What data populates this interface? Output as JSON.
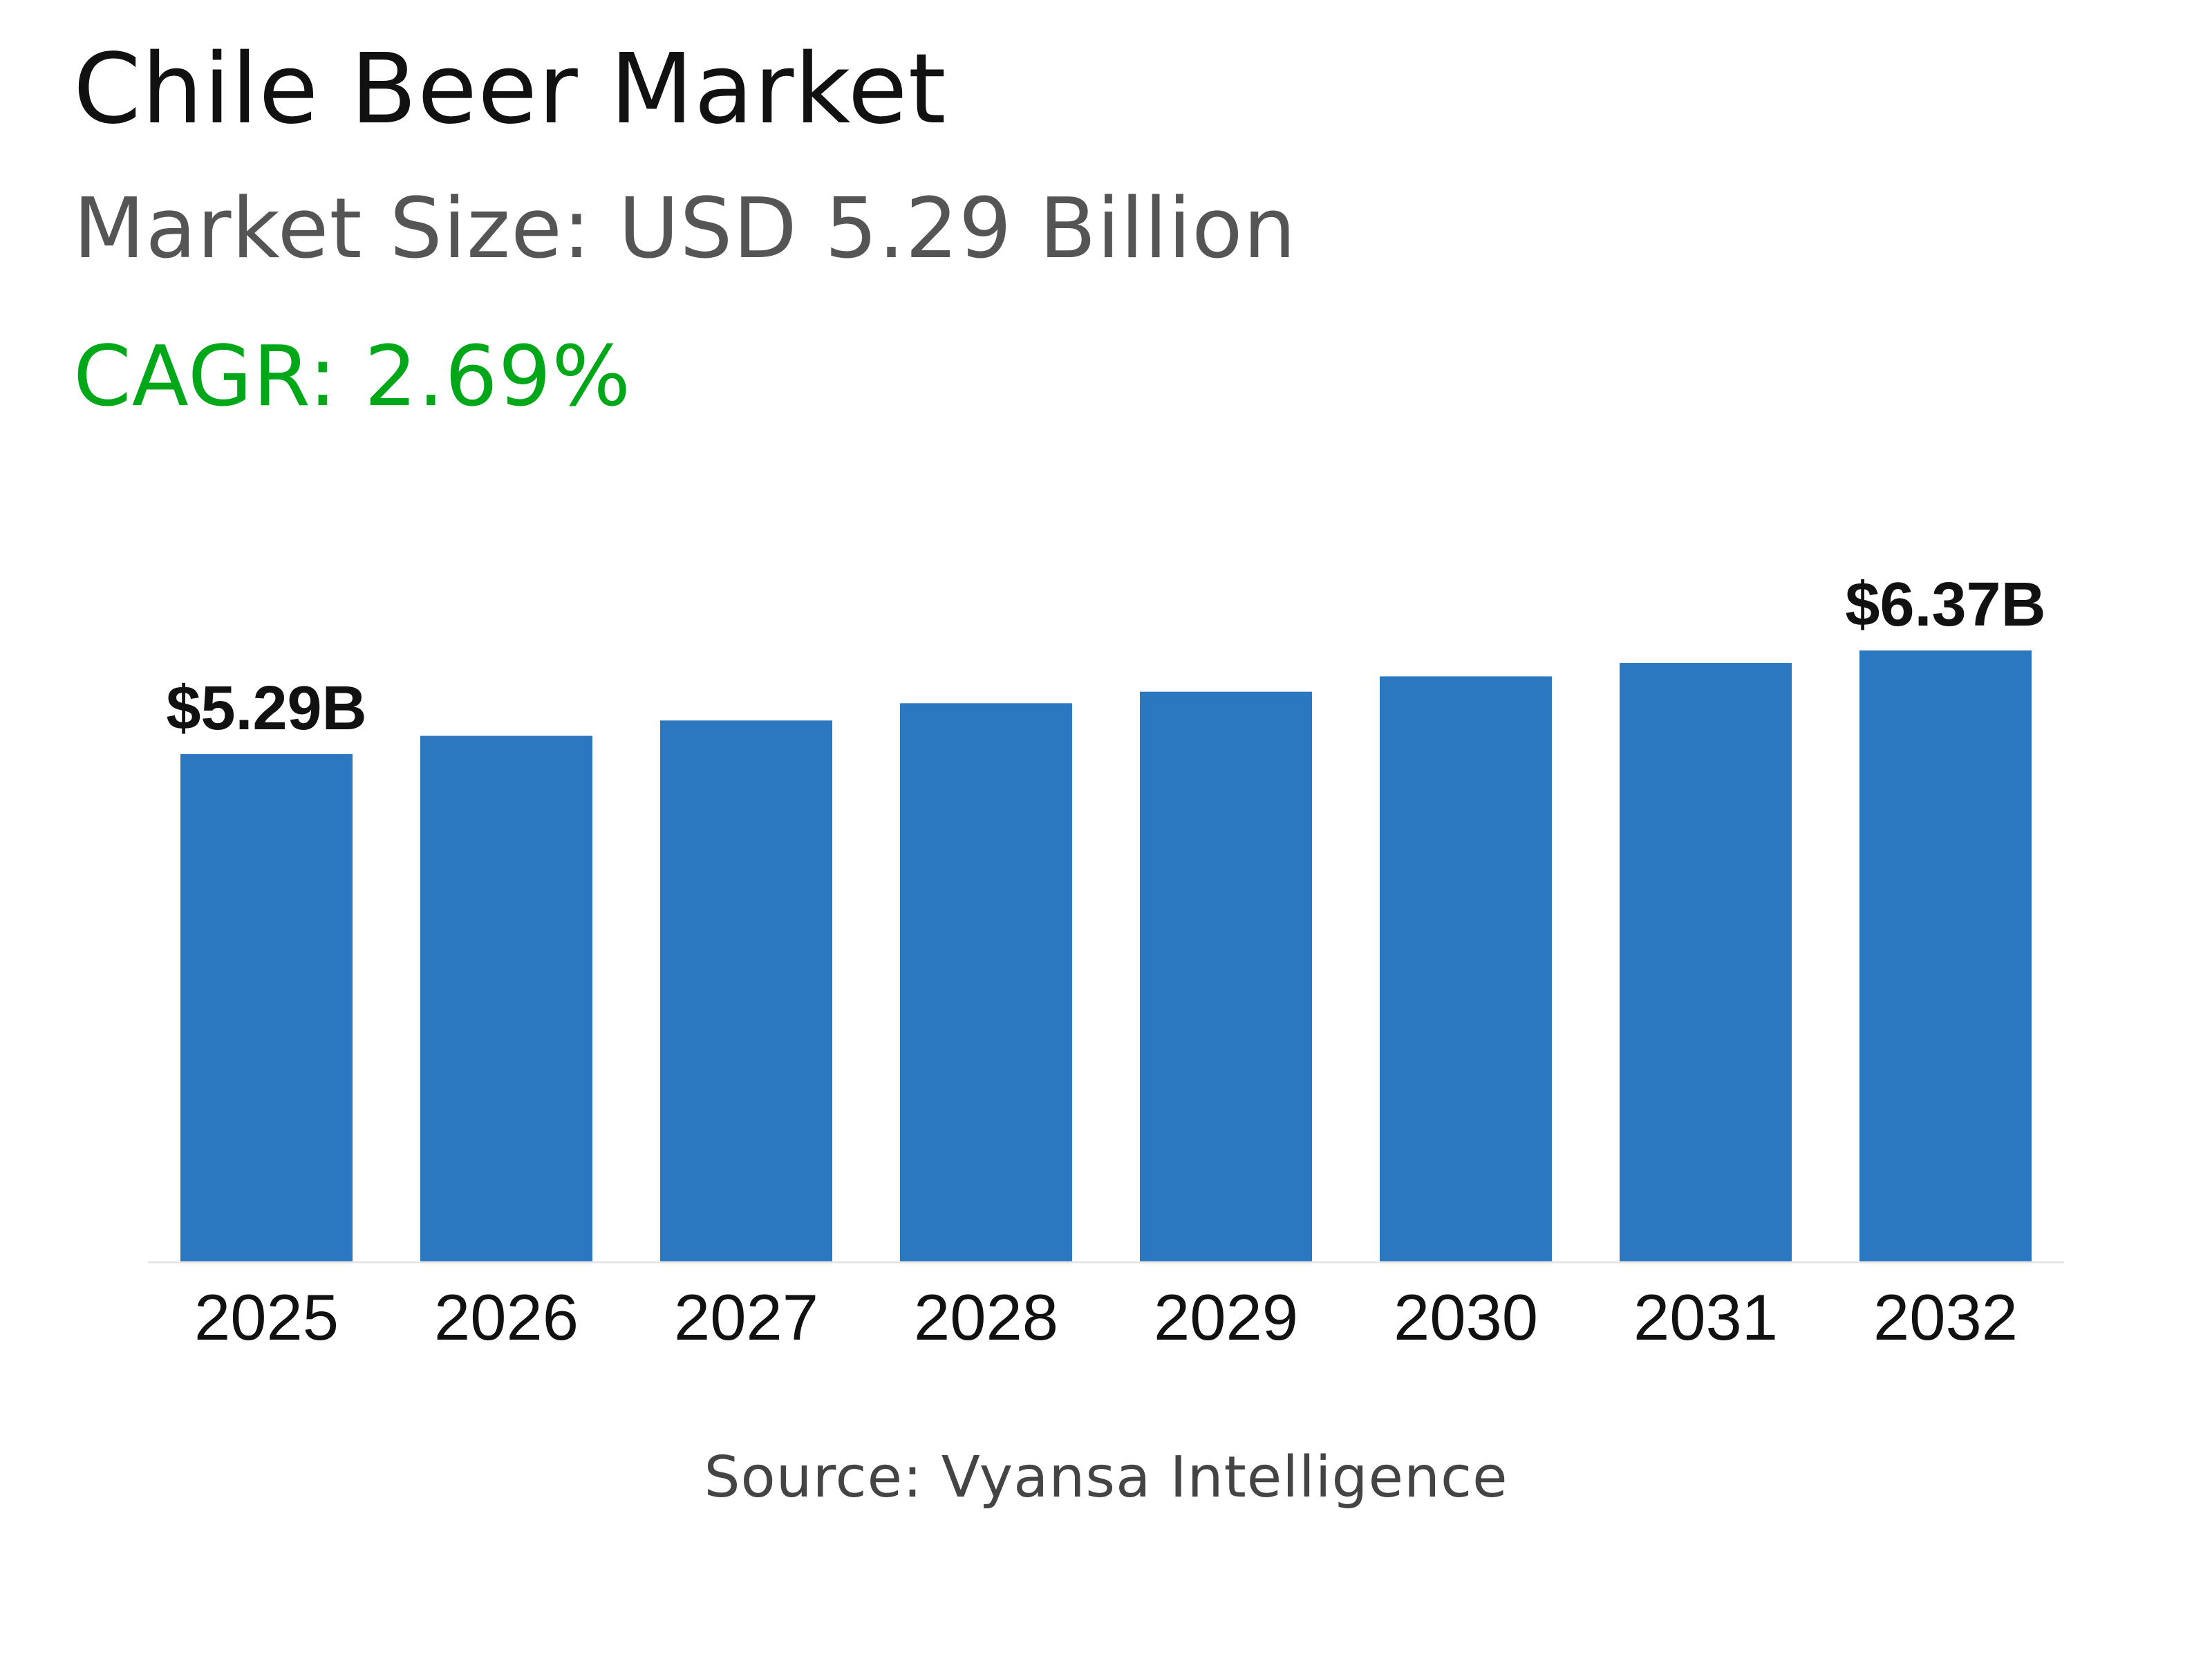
{
  "header": {
    "title": "Chile Beer Market",
    "subtitle": "Market Size: USD 5.29 Billion",
    "cagr": "CAGR: 2.69%"
  },
  "footer": {
    "source": "Source: Vyansa Intelligence"
  },
  "colors": {
    "bar": "#2b78c0",
    "cagr": "#00a819"
  },
  "chart_data": {
    "type": "bar",
    "title": "",
    "xlabel": "",
    "ylabel": "",
    "categories": [
      "2025",
      "2026",
      "2027",
      "2028",
      "2029",
      "2030",
      "2031",
      "2032"
    ],
    "values": [
      5.29,
      5.48,
      5.64,
      5.82,
      5.94,
      6.1,
      6.24,
      6.37
    ],
    "units": "USD Billion",
    "data_labels": {
      "0": "$5.29B",
      "7": "$6.37B"
    },
    "ylim": [
      0,
      6.37
    ],
    "grid": false,
    "y_axis_visible": false
  }
}
